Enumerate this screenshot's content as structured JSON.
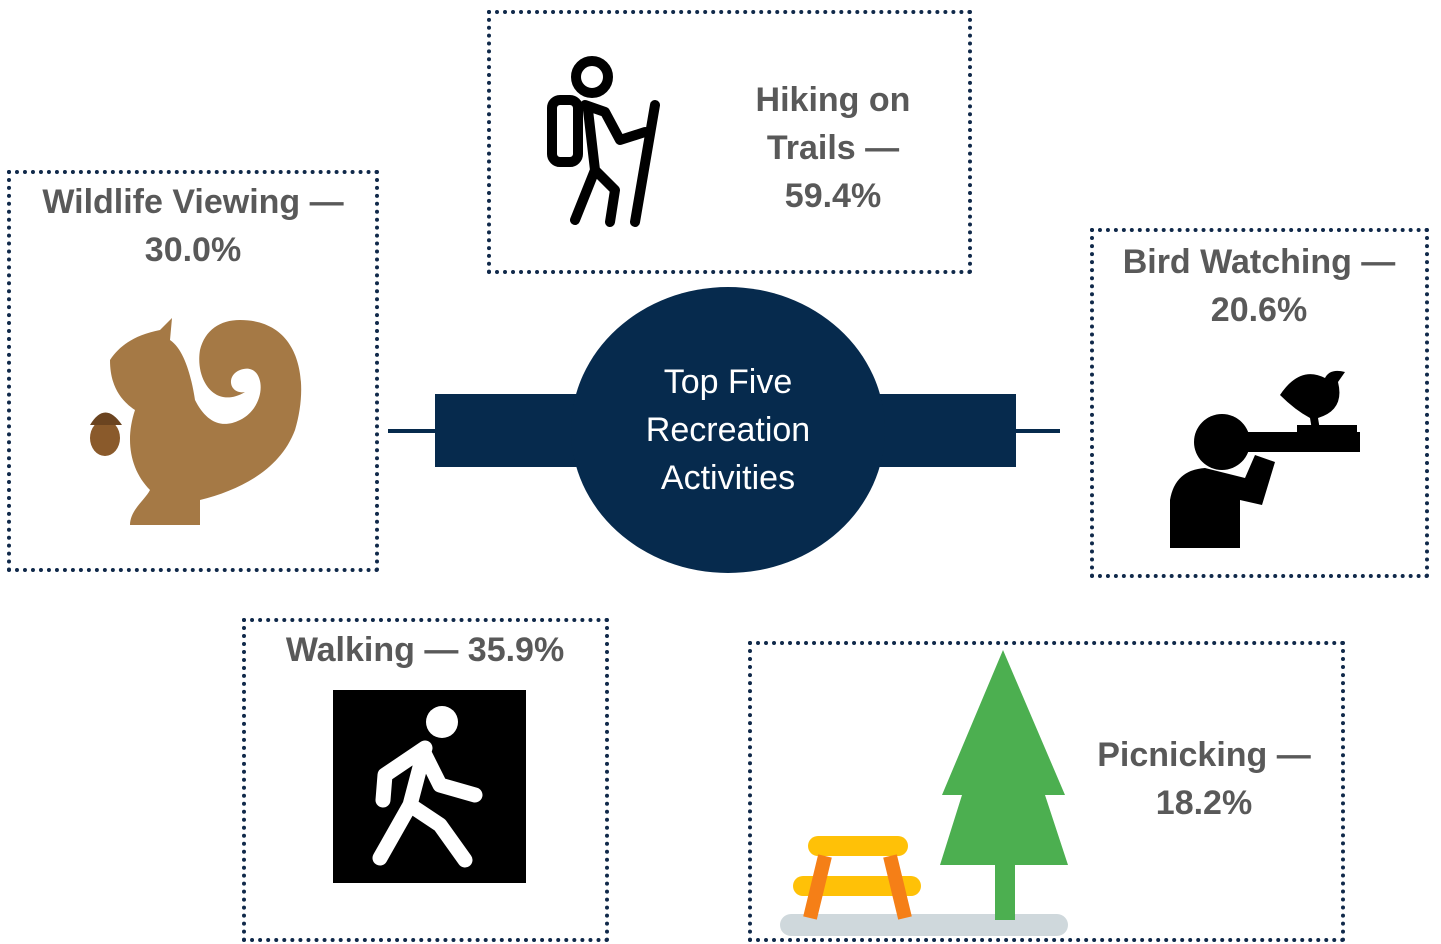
{
  "title": "Top Five Recreation Activities",
  "activities": [
    {
      "label": "Hiking on Trails — 59.4%"
    },
    {
      "label": "Wildlife Viewing — 30.0%"
    },
    {
      "label": "Bird Watching — 20.6%"
    },
    {
      "label": "Walking — 35.9%"
    },
    {
      "label": "Picnicking — 18.2%"
    }
  ]
}
